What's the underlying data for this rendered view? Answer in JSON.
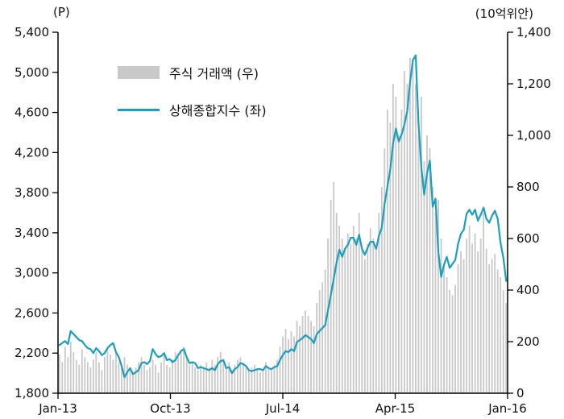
{
  "chart_data": {
    "type": "bar",
    "title": "",
    "left_axis": {
      "label": "(P)",
      "min": 1800,
      "max": 5400,
      "step": 400,
      "ticks": [
        "5,400",
        "5,000",
        "4,600",
        "4,200",
        "3,800",
        "3,400",
        "3,000",
        "2,600",
        "2,200",
        "1,800"
      ]
    },
    "right_axis": {
      "label": "(10억위안)",
      "min": 0,
      "max": 1400,
      "step": 200,
      "ticks": [
        "1,400",
        "1,200",
        "1,000",
        "800",
        "600",
        "400",
        "200",
        "0"
      ]
    },
    "x_ticks": [
      "Jan-13",
      "Oct-13",
      "Jul-14",
      "Apr-15",
      "Jan-16"
    ],
    "legend": [
      {
        "type": "bar",
        "label": "주식 거래액 (우)",
        "color": "#c9c9c9"
      },
      {
        "type": "line",
        "label": "상해종합지수 (좌)",
        "color": "#1b9fc0"
      }
    ],
    "series": [
      {
        "name": "주식 거래액 (우)",
        "axis": "right",
        "type": "bar",
        "color": "#c9c9c9",
        "values": [
          150,
          120,
          180,
          140,
          200,
          160,
          130,
          110,
          170,
          140,
          120,
          100,
          130,
          160,
          120,
          90,
          140,
          170,
          150,
          130,
          160,
          120,
          100,
          140,
          110,
          90,
          80,
          100,
          120,
          140,
          110,
          90,
          100,
          130,
          110,
          80,
          120,
          150,
          110,
          100,
          130,
          160,
          140,
          170,
          180,
          140,
          110,
          120,
          100,
          90,
          110,
          100,
          120,
          100,
          130,
          110,
          140,
          160,
          130,
          100,
          120,
          90,
          110,
          130,
          140,
          120,
          100,
          90,
          100,
          110,
          90,
          80,
          90,
          120,
          100,
          90,
          110,
          130,
          180,
          220,
          250,
          210,
          240,
          220,
          280,
          260,
          300,
          320,
          300,
          280,
          260,
          350,
          400,
          430,
          480,
          600,
          750,
          820,
          700,
          650,
          600,
          560,
          620,
          580,
          650,
          600,
          700,
          560,
          520,
          580,
          640,
          600,
          560,
          700,
          800,
          950,
          1100,
          1050,
          1200,
          1150,
          1000,
          1100,
          1250,
          1200,
          1300,
          1280,
          1200,
          1000,
          1150,
          900,
          1000,
          950,
          800,
          700,
          750,
          600,
          500,
          450,
          400,
          380,
          420,
          500,
          550,
          520,
          600,
          650,
          580,
          620,
          550,
          600,
          700,
          560,
          500,
          520,
          540,
          480,
          450,
          400,
          350
        ]
      },
      {
        "name": "상해종합지수 (좌)",
        "axis": "left",
        "type": "line",
        "color": "#1b9fc0",
        "values": [
          2280,
          2300,
          2320,
          2290,
          2420,
          2390,
          2360,
          2330,
          2320,
          2280,
          2250,
          2240,
          2200,
          2250,
          2220,
          2180,
          2200,
          2250,
          2280,
          2300,
          2210,
          2160,
          2070,
          1960,
          2010,
          2050,
          1990,
          2010,
          2030,
          2100,
          2110,
          2090,
          2120,
          2240,
          2190,
          2160,
          2170,
          2200,
          2130,
          2140,
          2110,
          2130,
          2180,
          2220,
          2240,
          2160,
          2100,
          2110,
          2100,
          2050,
          2060,
          2050,
          2040,
          2030,
          2050,
          2030,
          2090,
          2120,
          2130,
          2050,
          2060,
          2000,
          2040,
          2060,
          2100,
          2090,
          2070,
          2030,
          2020,
          2030,
          2040,
          2040,
          2030,
          2070,
          2050,
          2040,
          2060,
          2070,
          2130,
          2180,
          2220,
          2210,
          2240,
          2220,
          2310,
          2330,
          2350,
          2380,
          2360,
          2340,
          2300,
          2390,
          2420,
          2450,
          2480,
          2630,
          2780,
          2940,
          3100,
          3230,
          3160,
          3240,
          3280,
          3350,
          3350,
          3280,
          3380,
          3240,
          3180,
          3250,
          3310,
          3310,
          3240,
          3370,
          3450,
          3690,
          3860,
          4030,
          4290,
          4440,
          4310,
          4380,
          4480,
          4610,
          4900,
          5120,
          5170,
          4480,
          4050,
          3780,
          3990,
          4120,
          3660,
          3740,
          3210,
          2960,
          3080,
          3160,
          3050,
          3090,
          3130,
          3290,
          3390,
          3430,
          3590,
          3630,
          3580,
          3630,
          3520,
          3580,
          3650,
          3540,
          3500,
          3570,
          3620,
          3540,
          3300,
          3150,
          2920
        ]
      }
    ]
  }
}
